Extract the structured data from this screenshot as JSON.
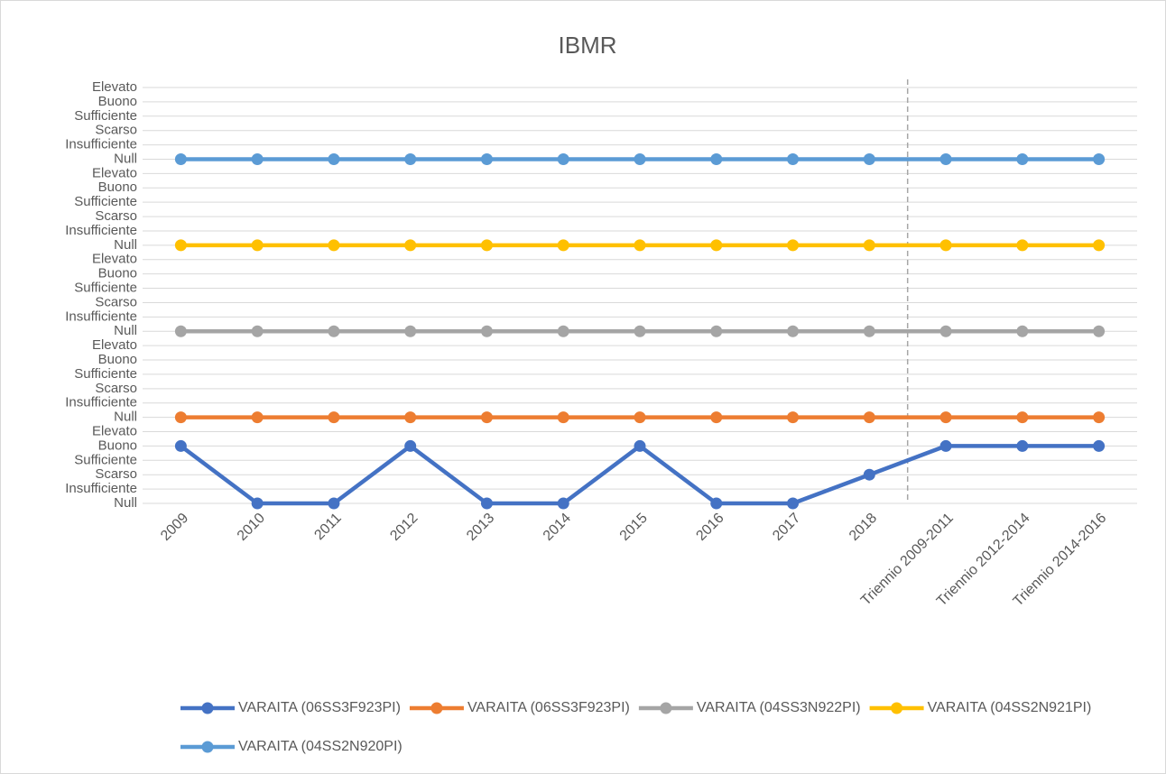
{
  "chart_data": {
    "type": "line",
    "title": "IBMR",
    "categories": [
      "2009",
      "2010",
      "2011",
      "2012",
      "2013",
      "2014",
      "2015",
      "2016",
      "2017",
      "2018",
      "Triennio 2009-2011",
      "Triennio 2012-2014",
      "Triennio 2014-2016"
    ],
    "series": [
      {
        "name": "VARAITA (06SS3F923PI)",
        "color": "#4472c4",
        "values": [
          4,
          0,
          0,
          4,
          0,
          0,
          4,
          0,
          0,
          2,
          4,
          4,
          4
        ]
      },
      {
        "name": "VARAITA (06SS3F923PI)",
        "color": "#ed7d31",
        "values": [
          6,
          6,
          6,
          6,
          6,
          6,
          6,
          6,
          6,
          6,
          6,
          6,
          6
        ]
      },
      {
        "name": "VARAITA (04SS3N922PI)",
        "color": "#a5a5a5",
        "values": [
          12,
          12,
          12,
          12,
          12,
          12,
          12,
          12,
          12,
          12,
          12,
          12,
          12
        ]
      },
      {
        "name": "VARAITA (04SS2N921PI)",
        "color": "#ffc000",
        "values": [
          18,
          18,
          18,
          18,
          18,
          18,
          18,
          18,
          18,
          18,
          18,
          18,
          18
        ]
      },
      {
        "name": "VARAITA (04SS2N920PI)",
        "color": "#5b9bd5",
        "values": [
          24,
          24,
          24,
          24,
          24,
          24,
          24,
          24,
          24,
          24,
          24,
          24,
          24
        ]
      }
    ],
    "ylim": [
      0,
      29
    ],
    "yticks": [
      {
        "value": 0,
        "label": "Null"
      },
      {
        "value": 1,
        "label": "Insufficiente"
      },
      {
        "value": 2,
        "label": "Scarso"
      },
      {
        "value": 3,
        "label": "Sufficiente"
      },
      {
        "value": 4,
        "label": "Buono"
      },
      {
        "value": 5,
        "label": "Elevato"
      },
      {
        "value": 6,
        "label": "Null"
      },
      {
        "value": 7,
        "label": "Insufficiente"
      },
      {
        "value": 8,
        "label": "Scarso"
      },
      {
        "value": 9,
        "label": "Sufficiente"
      },
      {
        "value": 10,
        "label": "Buono"
      },
      {
        "value": 11,
        "label": "Elevato"
      },
      {
        "value": 12,
        "label": "Null"
      },
      {
        "value": 13,
        "label": "Insufficiente"
      },
      {
        "value": 14,
        "label": "Scarso"
      },
      {
        "value": 15,
        "label": "Sufficiente"
      },
      {
        "value": 16,
        "label": "Buono"
      },
      {
        "value": 17,
        "label": "Elevato"
      },
      {
        "value": 18,
        "label": "Null"
      },
      {
        "value": 19,
        "label": "Insufficiente"
      },
      {
        "value": 20,
        "label": "Scarso"
      },
      {
        "value": 21,
        "label": "Sufficiente"
      },
      {
        "value": 22,
        "label": "Buono"
      },
      {
        "value": 23,
        "label": "Elevato"
      },
      {
        "value": 24,
        "label": "Null"
      },
      {
        "value": 25,
        "label": "Insufficiente"
      },
      {
        "value": 26,
        "label": "Scarso"
      },
      {
        "value": 27,
        "label": "Sufficiente"
      },
      {
        "value": 28,
        "label": "Buono"
      },
      {
        "value": 29,
        "label": "Elevato"
      }
    ],
    "grid": true,
    "legend": "bottom"
  }
}
